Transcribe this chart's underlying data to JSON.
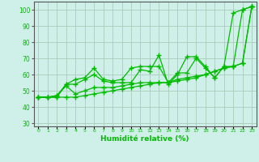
{
  "xlabel": "Humidité relative (%)",
  "background_color": "#cff0e8",
  "grid_color": "#aaccbb",
  "line_color": "#00bb00",
  "xlim": [
    -0.5,
    23.5
  ],
  "ylim": [
    28,
    105
  ],
  "yticks": [
    30,
    40,
    50,
    60,
    70,
    80,
    90,
    100
  ],
  "xtick_labels": [
    "0",
    "1",
    "2",
    "3",
    "4",
    "5",
    "6",
    "7",
    "8",
    "9",
    "10",
    "11",
    "12",
    "13",
    "14",
    "15",
    "16",
    "17",
    "18",
    "19",
    "20",
    "21",
    "22",
    "23"
  ],
  "series": [
    [
      46,
      46,
      46,
      54,
      54,
      57,
      60,
      56,
      55,
      55,
      55,
      63,
      62,
      72,
      54,
      60,
      71,
      71,
      65,
      58,
      65,
      65,
      100,
      102
    ],
    [
      46,
      46,
      47,
      54,
      57,
      58,
      64,
      57,
      56,
      57,
      64,
      65,
      65,
      65,
      55,
      61,
      61,
      70,
      64,
      58,
      65,
      98,
      100,
      102
    ],
    [
      46,
      46,
      47,
      53,
      48,
      50,
      52,
      52,
      52,
      53,
      54,
      55,
      55,
      55,
      55,
      57,
      58,
      59,
      60,
      62,
      64,
      65,
      67,
      102
    ],
    [
      46,
      46,
      46,
      46,
      46,
      47,
      48,
      49,
      50,
      51,
      52,
      53,
      54,
      55,
      55,
      56,
      57,
      58,
      60,
      62,
      64,
      65,
      67,
      102
    ]
  ]
}
